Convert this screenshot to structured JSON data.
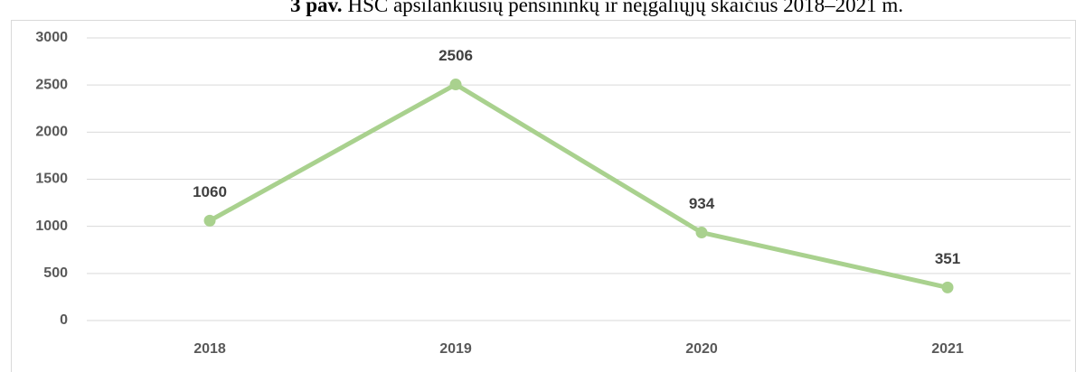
{
  "chart_data": {
    "type": "line",
    "title_label": "3 pav.",
    "title": "HSC apsilankiusių pensininkų ir neįgaliųjų skaičius 2018–2021 m.",
    "categories": [
      "2018",
      "2019",
      "2020",
      "2021"
    ],
    "series": [
      {
        "name": null,
        "color": "#a9d18e",
        "values": [
          1060,
          2506,
          934,
          351
        ]
      }
    ],
    "ylim": [
      0,
      3000
    ],
    "yticks": [
      0,
      500,
      1000,
      1500,
      2000,
      2500,
      3000
    ],
    "grid": true
  }
}
